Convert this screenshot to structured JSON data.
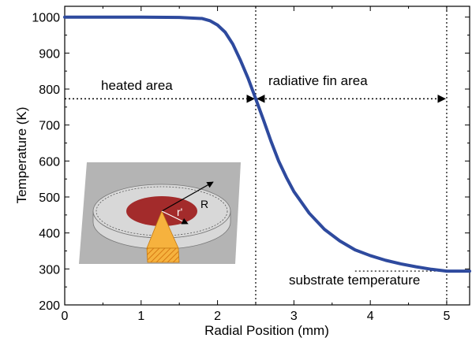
{
  "chart_data": {
    "type": "line",
    "xlabel": "Radial Position (mm)",
    "ylabel": "Temperature (K)",
    "xlim": [
      0,
      5.3
    ],
    "ylim": [
      200,
      1030
    ],
    "xticks": [
      "0",
      "1",
      "2",
      "3",
      "4",
      "5"
    ],
    "yticks": [
      "200",
      "300",
      "400",
      "500",
      "600",
      "700",
      "800",
      "900",
      "1000"
    ],
    "series": [
      {
        "color": "#2e4a9e",
        "x": [
          0,
          0.5,
          1.0,
          1.5,
          1.8,
          1.9,
          2.0,
          2.1,
          2.2,
          2.3,
          2.4,
          2.5,
          2.6,
          2.7,
          2.8,
          2.9,
          3.0,
          3.2,
          3.4,
          3.6,
          3.8,
          4.0,
          4.2,
          4.4,
          4.6,
          4.8,
          5.0,
          5.3
        ],
        "y": [
          1000,
          1000,
          1000,
          999,
          996,
          990,
          978,
          958,
          925,
          880,
          830,
          773,
          715,
          655,
          600,
          555,
          515,
          455,
          410,
          378,
          353,
          337,
          324,
          314,
          306,
          299,
          294,
          294
        ]
      }
    ],
    "annotations": {
      "heated": "heated area",
      "fin": "radiative fin area",
      "substrate": "substrate temperature"
    },
    "boundaries_x": [
      2.5,
      5.0
    ],
    "arrow_y": 773,
    "substrate_x_start": 3.8,
    "inset": {
      "label_R": "R",
      "label_r": "r'"
    }
  }
}
